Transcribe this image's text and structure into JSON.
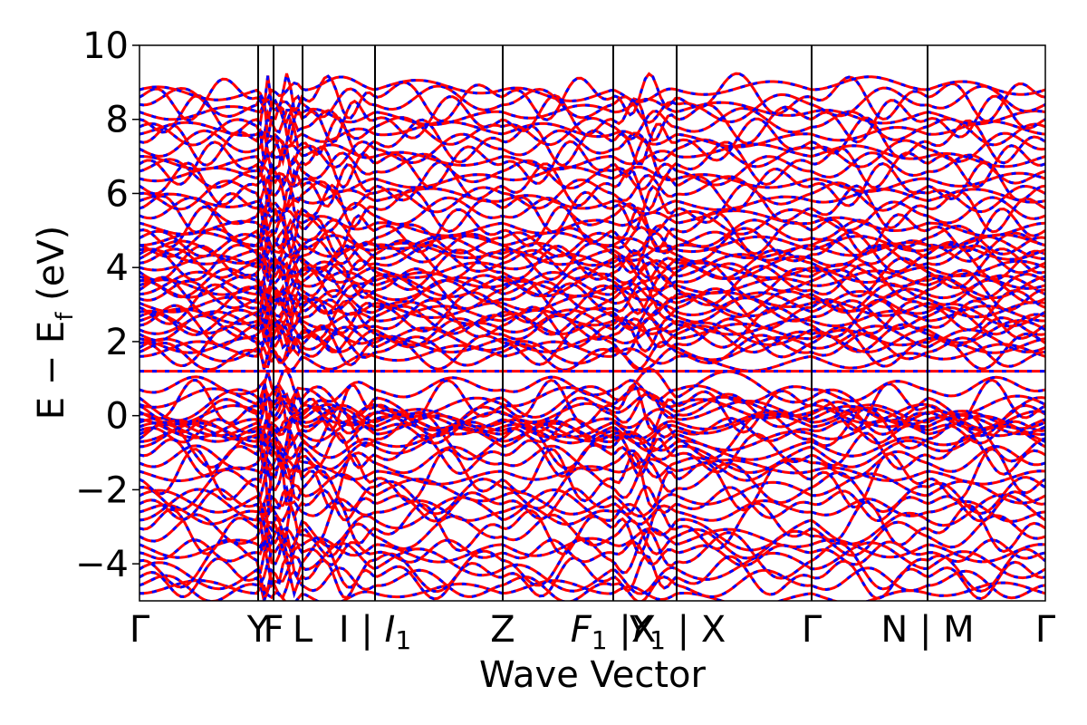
{
  "chart_data": {
    "type": "line",
    "title": "",
    "xlabel": "Wave Vector",
    "ylabel": "E − E_f (eV)",
    "ylim": [
      -5,
      10
    ],
    "xlim": [
      0,
      1
    ],
    "yticks": [
      -4,
      -2,
      0,
      2,
      4,
      6,
      8,
      10
    ],
    "ytick_labels": [
      "−4",
      "−2",
      "0",
      "2",
      "4",
      "6",
      "8",
      "10"
    ],
    "kpath": [
      {
        "label": "Γ",
        "italic_sub": false,
        "pos": 0.0
      },
      {
        "label": "Y",
        "pos": 0.131
      },
      {
        "label": "F",
        "pos": 0.148
      },
      {
        "label": "L",
        "pos": 0.18
      },
      {
        "label": "I | ",
        "italic": "I",
        "sub": "1",
        "pos": 0.26
      },
      {
        "label": "Z",
        "pos": 0.401
      },
      {
        "label": "F",
        "sub": "1",
        "suffix": " |X",
        "pos": 0.523
      },
      {
        "label": "Y",
        "sub": "1",
        "suffix": " | X",
        "pos": 0.593
      },
      {
        "label": "Γ",
        "pos": 0.742
      },
      {
        "label": "N | M",
        "pos": 0.87
      },
      {
        "label": "Γ",
        "pos": 1.0
      }
    ],
    "series": [
      {
        "name": "",
        "color": "#ff0000",
        "style": "solid"
      },
      {
        "name": "",
        "color": "#0000ff",
        "style": "dashed"
      }
    ],
    "fermi_flat_band": 1.2,
    "grid": false,
    "legend": "none"
  }
}
